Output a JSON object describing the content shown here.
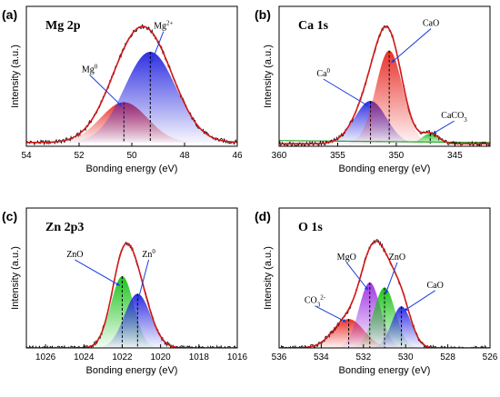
{
  "chart_data": [
    {
      "type": "area",
      "panel_letter": "(a)",
      "title": "Mg 2p",
      "xlabel": "Bonding energy (eV)",
      "ylabel": "Intensity (a.u.)",
      "xlim": [
        54,
        46
      ],
      "xticks": [
        "54",
        "52",
        "50",
        "48",
        "46"
      ],
      "baseline": 0.03,
      "peaks": [
        {
          "label_text": "Mg",
          "label_sup": "0",
          "center": 50.3,
          "height": 0.32,
          "fwhm": 2.1,
          "color": "#e8261f"
        },
        {
          "label_text": "Mg",
          "label_sup": "2+",
          "center": 49.3,
          "height": 0.72,
          "fwhm": 2.3,
          "color": "#2424e0"
        }
      ],
      "label_pos": [
        [
          0.3,
          0.53
        ],
        [
          0.65,
          0.84
        ]
      ]
    },
    {
      "type": "area",
      "panel_letter": "(b)",
      "title": "Ca 1s",
      "xlabel": "Bonding energy (eV)",
      "ylabel": "Intensity (a.u.)",
      "xlim": [
        360,
        342
      ],
      "xticks": [
        "360",
        "355",
        "350",
        "345"
      ],
      "baseline": 0.02,
      "background_line_color": "#2aa52a",
      "peaks": [
        {
          "label_text": "Ca",
          "label_sup": "0",
          "center": 352.2,
          "height": 0.34,
          "fwhm": 3.2,
          "color": "#2424e0"
        },
        {
          "label_text": "CaO",
          "label_sup": "",
          "center": 350.6,
          "height": 0.74,
          "fwhm": 2.7,
          "color": "#e8261f"
        },
        {
          "label_text": "CaCO",
          "label_sub": "3",
          "center": 347.1,
          "height": 0.08,
          "fwhm": 1.7,
          "color": "#10c010"
        }
      ],
      "label_pos": [
        [
          0.21,
          0.5
        ],
        [
          0.72,
          0.86
        ],
        [
          0.83,
          0.2
        ]
      ]
    },
    {
      "type": "area",
      "panel_letter": "(c)",
      "title": "Zn 2p3",
      "xlabel": "Bonding energy (eV)",
      "ylabel": "Intensity (a.u.)",
      "xlim": [
        1027,
        1016
      ],
      "xticks": [
        "1026",
        "1024",
        "1022",
        "1020",
        "1018",
        "1016"
      ],
      "baseline": 0.0,
      "peaks": [
        {
          "label_text": "ZnO",
          "label_sup": "",
          "center": 1022.0,
          "height": 0.57,
          "fwhm": 1.4,
          "color": "#10c010"
        },
        {
          "label_text": "Zn",
          "label_sup": "0",
          "center": 1021.2,
          "height": 0.43,
          "fwhm": 1.6,
          "color": "#2424e0"
        }
      ],
      "label_pos": [
        [
          0.23,
          0.65
        ],
        [
          0.58,
          0.65
        ]
      ]
    },
    {
      "type": "area",
      "panel_letter": "(d)",
      "title": "O 1s",
      "xlabel": "Bonding energy (eV)",
      "ylabel": "Intensity (a.u.)",
      "xlim": [
        536,
        526
      ],
      "xticks": [
        "536",
        "534",
        "532",
        "530",
        "528",
        "526"
      ],
      "baseline": 0.0,
      "peaks": [
        {
          "label_text": "CO",
          "label_sub": "3",
          "label_sup": "2-",
          "center": 532.7,
          "height": 0.23,
          "fwhm": 1.7,
          "color": "#e8261f"
        },
        {
          "label_text": "MgO",
          "label_sup": "",
          "center": 531.7,
          "height": 0.52,
          "fwhm": 1.2,
          "color": "#9b2ee0"
        },
        {
          "label_text": "ZnO",
          "label_sup": "",
          "center": 531.0,
          "height": 0.48,
          "fwhm": 1.2,
          "color": "#10c010"
        },
        {
          "label_text": "CaO",
          "label_sup": "",
          "center": 530.2,
          "height": 0.33,
          "fwhm": 1.1,
          "color": "#2424e0"
        }
      ],
      "label_pos": [
        [
          0.17,
          0.32
        ],
        [
          0.32,
          0.63
        ],
        [
          0.56,
          0.63
        ],
        [
          0.74,
          0.43
        ]
      ]
    }
  ],
  "envelope_color": "#d41818",
  "raw_color": "#000000"
}
